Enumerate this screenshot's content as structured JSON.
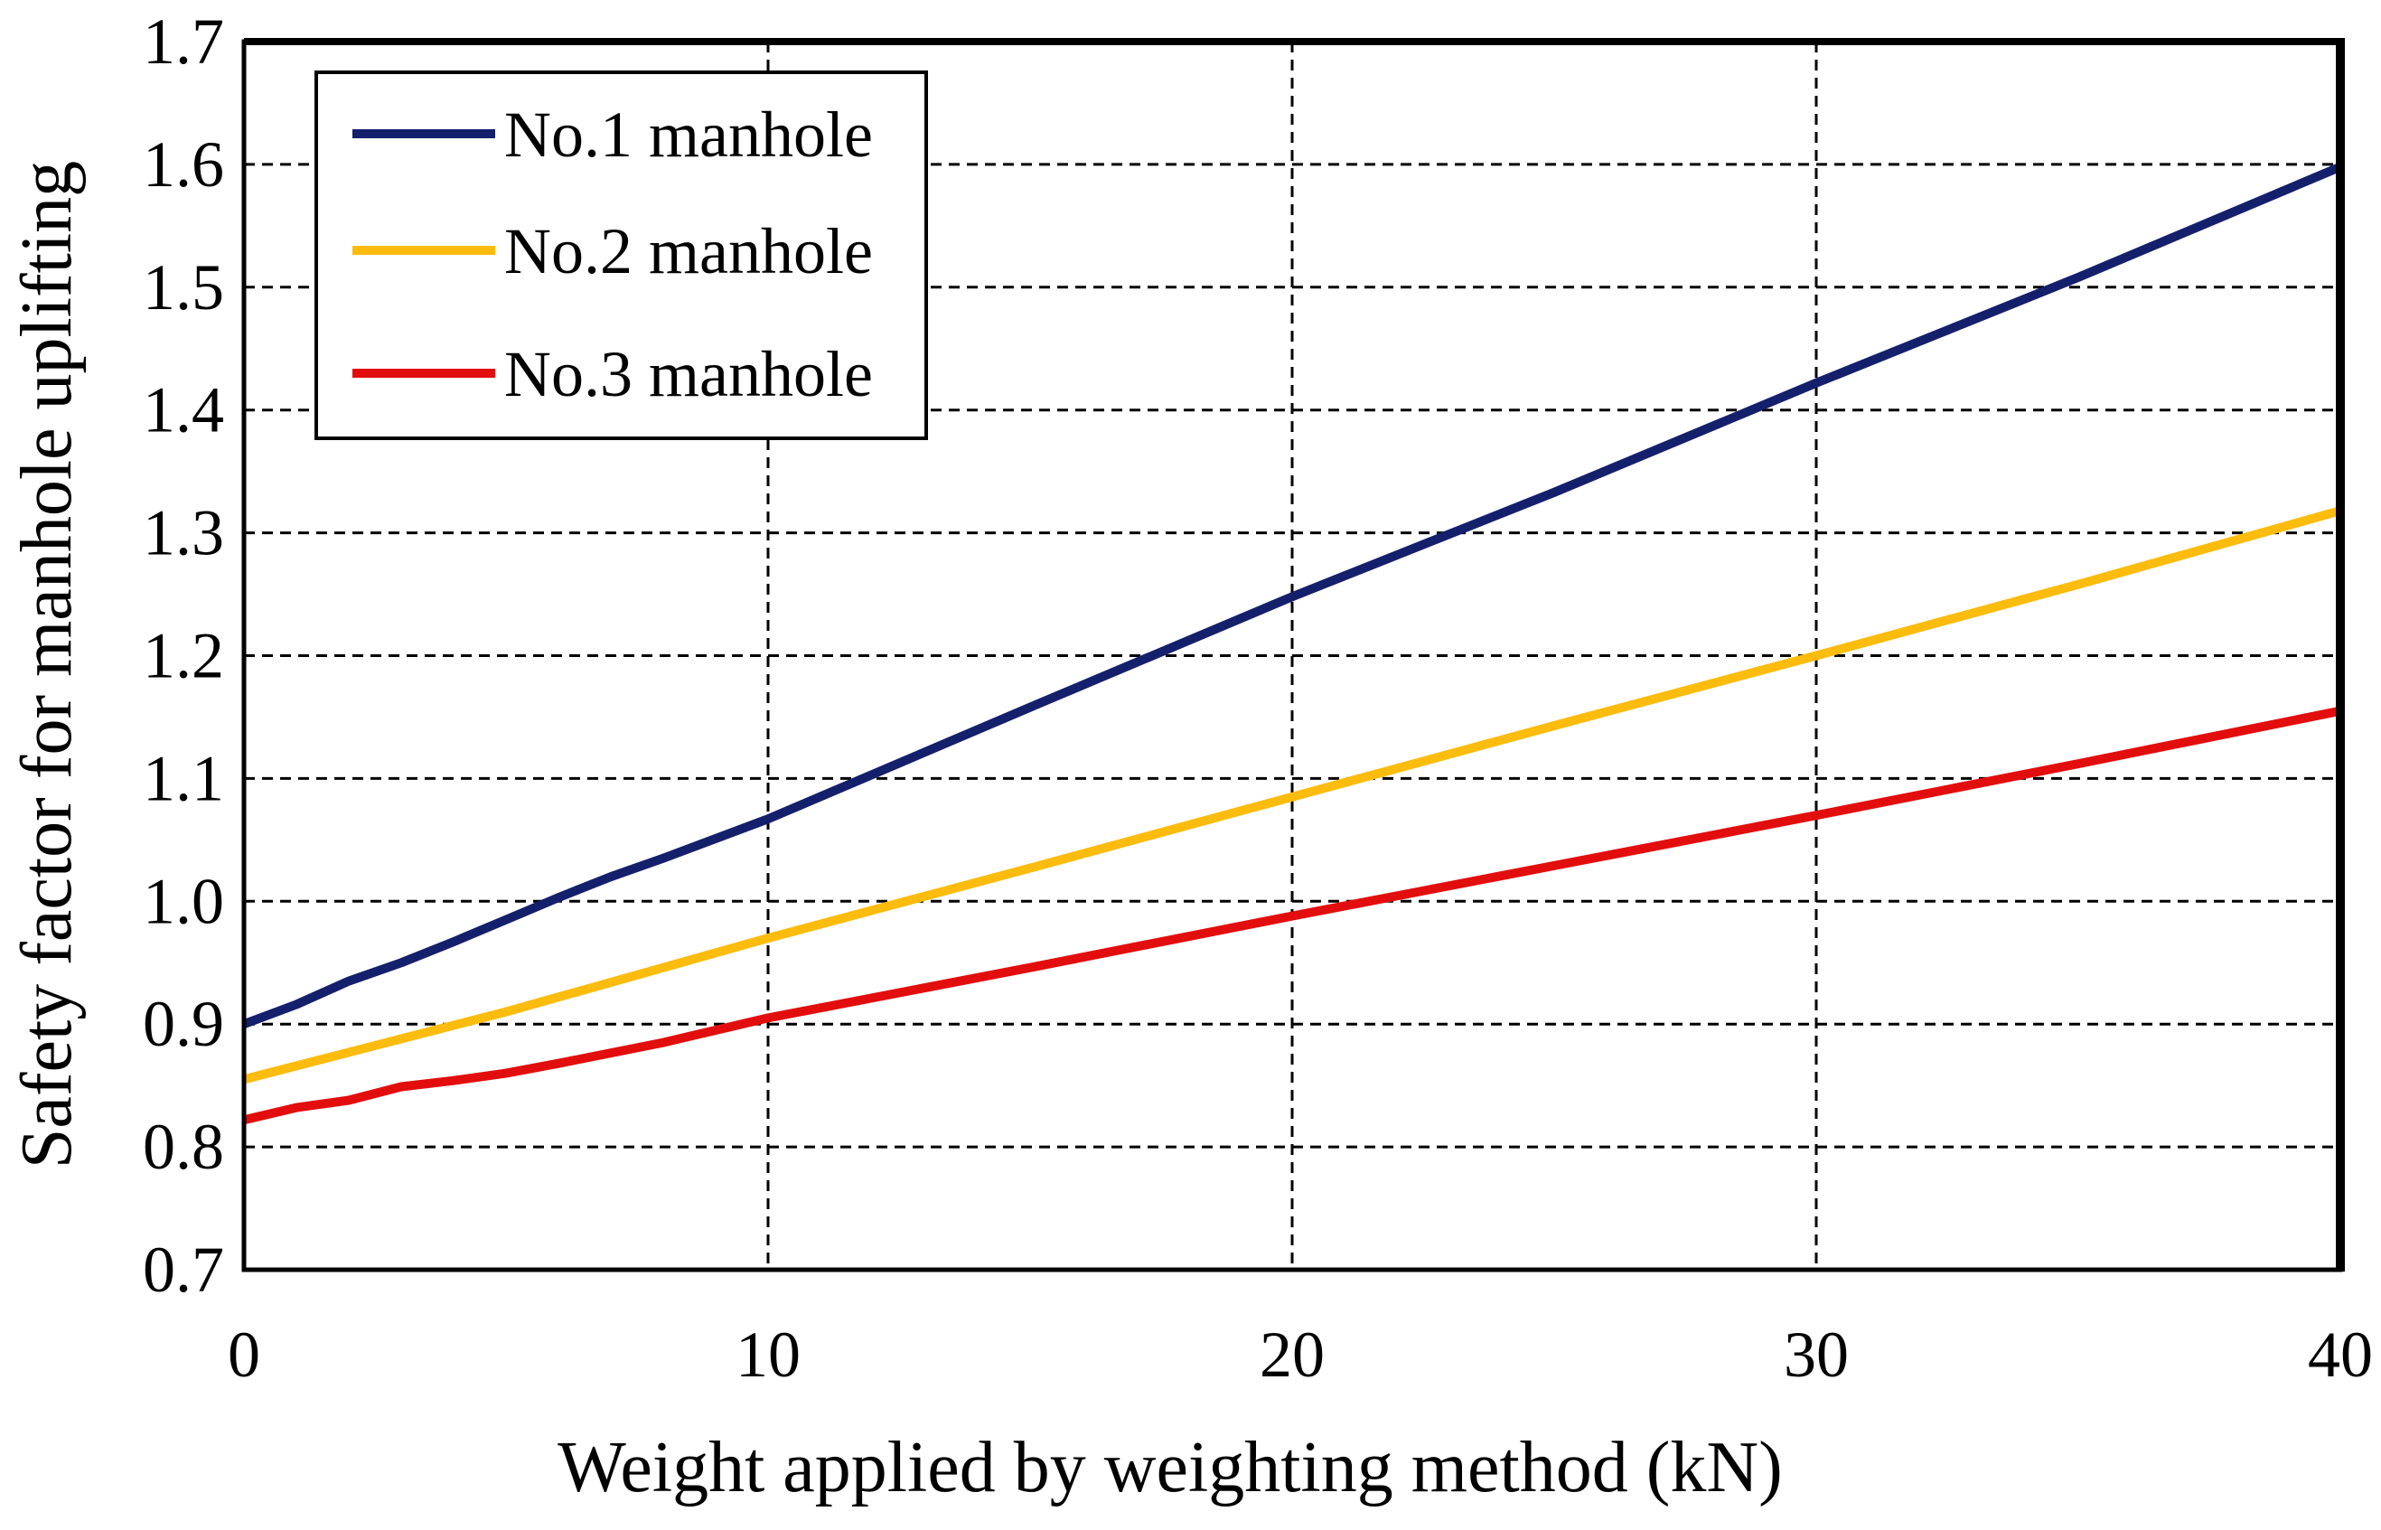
{
  "chart_data": {
    "type": "line",
    "title": "",
    "xlabel": "Weight applied by weighting method (kN)",
    "ylabel": "Safety factor for manhole uplifting",
    "xlim": [
      0,
      40
    ],
    "ylim": [
      0.7,
      1.7
    ],
    "xticks": [
      0,
      10,
      20,
      30,
      40
    ],
    "xtick_labels": [
      "0",
      "10",
      "20",
      "30",
      "40"
    ],
    "yticks": [
      0.7,
      0.8,
      0.9,
      1.0,
      1.1,
      1.2,
      1.3,
      1.4,
      1.5,
      1.6,
      1.7
    ],
    "ytick_labels": [
      "0.7",
      "0.8",
      "0.9",
      "1.0",
      "1.1",
      "1.2",
      "1.3",
      "1.4",
      "1.5",
      "1.6",
      "1.7"
    ],
    "grid": true,
    "legend_position": "top-left",
    "series": [
      {
        "name": "No.1 manhole",
        "color": "#14206b",
        "x": [
          0,
          1,
          2,
          3,
          4,
          5,
          6,
          7,
          8,
          10,
          15,
          20,
          25,
          30,
          35,
          40
        ],
        "y": [
          0.9,
          0.916,
          0.935,
          0.95,
          0.967,
          0.985,
          1.003,
          1.02,
          1.035,
          1.067,
          1.158,
          1.248,
          1.333,
          1.422,
          1.508,
          1.598
        ]
      },
      {
        "name": "No.2 manhole",
        "color": "#fbbc0e",
        "x": [
          0,
          5,
          10,
          15,
          20,
          25,
          30,
          35,
          40
        ],
        "y": [
          0.855,
          0.91,
          0.97,
          1.027,
          1.085,
          1.143,
          1.2,
          1.258,
          1.318
        ]
      },
      {
        "name": "No.3 manhole",
        "color": "#e20e0e",
        "x": [
          0,
          1,
          2,
          3,
          4,
          5,
          6,
          8,
          10,
          15,
          20,
          25,
          30,
          35,
          40
        ],
        "y": [
          0.822,
          0.832,
          0.838,
          0.849,
          0.854,
          0.86,
          0.868,
          0.885,
          0.905,
          0.946,
          0.988,
          1.029,
          1.07,
          1.112,
          1.155
        ]
      }
    ]
  }
}
